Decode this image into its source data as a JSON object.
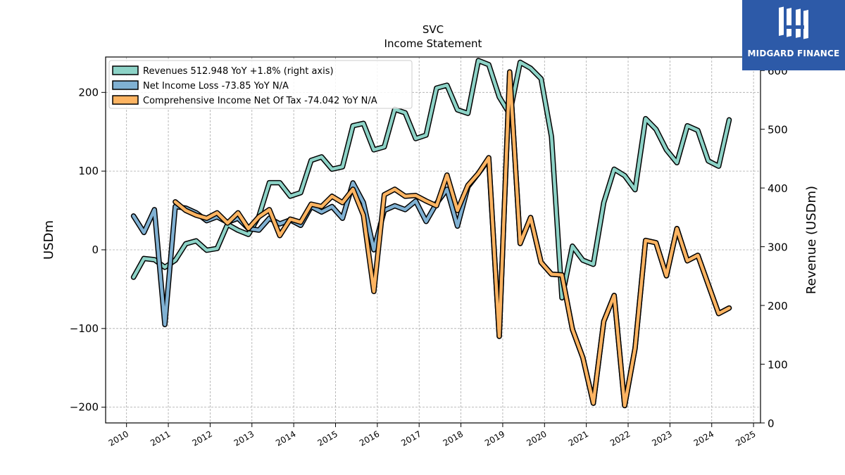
{
  "logo": {
    "brand": "MIDGARD FINANCE",
    "color": "#2d5aa8"
  },
  "chart_data": {
    "type": "line",
    "title": "SVC",
    "subtitle": "Income Statement",
    "ylabel_left": "USDm",
    "ylabel_right": "Revenue (USDm)",
    "ylim_left": [
      -220,
      245
    ],
    "ylim_right": [
      0,
      623
    ],
    "xlim": [
      "2009-07",
      "2025-03"
    ],
    "yticks_left": [
      -200,
      -100,
      0,
      100,
      200
    ],
    "yticks_left_labels": [
      "−200",
      "−100",
      "0",
      "100",
      "200"
    ],
    "yticks_right": [
      0,
      100,
      200,
      300,
      400,
      500,
      600
    ],
    "xticks": [
      "2010",
      "2011",
      "2012",
      "2013",
      "2014",
      "2015",
      "2016",
      "2017",
      "2018",
      "2019",
      "2020",
      "2021",
      "2022",
      "2023",
      "2024",
      "2025"
    ],
    "grid": true,
    "legend_position": "top-left",
    "series": [
      {
        "name": "Revenues  512.948 YoY +1.8% (right axis)",
        "axis": "right",
        "color": "#8dd3c7",
        "x": [
          "2010-03",
          "2010-06",
          "2010-09",
          "2010-12",
          "2011-03",
          "2011-06",
          "2011-09",
          "2011-12",
          "2012-03",
          "2012-06",
          "2012-09",
          "2012-12",
          "2013-03",
          "2013-06",
          "2013-09",
          "2013-12",
          "2014-03",
          "2014-06",
          "2014-09",
          "2014-12",
          "2015-03",
          "2015-06",
          "2015-09",
          "2015-12",
          "2016-03",
          "2016-06",
          "2016-09",
          "2016-12",
          "2017-03",
          "2017-06",
          "2017-09",
          "2017-12",
          "2018-03",
          "2018-06",
          "2018-09",
          "2018-12",
          "2019-03",
          "2019-06",
          "2019-09",
          "2019-12",
          "2020-03",
          "2020-06",
          "2020-09",
          "2020-12",
          "2021-03",
          "2021-06",
          "2021-09",
          "2021-12",
          "2022-03",
          "2022-06",
          "2022-09",
          "2022-12",
          "2023-03",
          "2023-06",
          "2023-09",
          "2023-12",
          "2024-03",
          "2024-06"
        ],
        "values": [
          248,
          280,
          278,
          265,
          277,
          305,
          310,
          294,
          297,
          338,
          328,
          321,
          352,
          409,
          409,
          386,
          392,
          447,
          453,
          432,
          436,
          506,
          510,
          465,
          470,
          534,
          528,
          484,
          490,
          570,
          575,
          533,
          527,
          617,
          610,
          555,
          526,
          614,
          604,
          586,
          487,
          213,
          301,
          277,
          270,
          375,
          432,
          421,
          397,
          518,
          500,
          465,
          443,
          506,
          498,
          446,
          437,
          516
        ]
      },
      {
        "name": "Net Income Loss  -73.85 YoY N/A",
        "axis": "left",
        "color": "#80b1d3",
        "x": [
          "2010-03",
          "2010-06",
          "2010-09",
          "2010-12",
          "2011-03",
          "2011-06",
          "2011-09",
          "2011-12",
          "2012-03",
          "2012-06",
          "2012-09",
          "2012-12",
          "2013-03",
          "2013-06",
          "2013-09",
          "2013-12",
          "2014-03",
          "2014-06",
          "2014-09",
          "2014-12",
          "2015-03",
          "2015-06",
          "2015-09",
          "2015-12",
          "2016-03",
          "2016-06",
          "2016-09",
          "2016-12",
          "2017-03",
          "2017-06",
          "2017-09",
          "2017-12",
          "2018-03",
          "2018-06",
          "2018-09",
          "2018-12",
          "2019-03",
          "2019-06",
          "2019-09",
          "2019-12",
          "2020-03",
          "2020-06",
          "2020-09",
          "2020-12",
          "2021-03",
          "2021-06",
          "2021-09",
          "2021-12",
          "2022-03",
          "2022-06",
          "2022-09",
          "2022-12",
          "2023-03",
          "2023-06",
          "2023-09",
          "2023-12",
          "2024-03",
          "2024-06"
        ],
        "values": [
          43,
          22,
          51,
          -95,
          55,
          53,
          47,
          37,
          42,
          35,
          40,
          27,
          25,
          40,
          33,
          38,
          31,
          55,
          48,
          55,
          40,
          85,
          60,
          0,
          50,
          56,
          51,
          62,
          36,
          59,
          77,
          30,
          80,
          97,
          115,
          -110,
          226,
          8,
          41,
          -16,
          -31,
          -32,
          -101,
          -137,
          -195,
          -91,
          -58,
          -198,
          -125,
          12,
          9,
          -33,
          27,
          -14,
          -7,
          -44,
          -81,
          -74
        ]
      },
      {
        "name": "Comprehensive Income Net Of Tax  -74.042 YoY N/A",
        "axis": "left",
        "color": "#fdb462",
        "x": [
          "2011-03",
          "2011-06",
          "2011-09",
          "2011-12",
          "2012-03",
          "2012-06",
          "2012-09",
          "2012-12",
          "2013-03",
          "2013-06",
          "2013-09",
          "2013-12",
          "2014-03",
          "2014-06",
          "2014-09",
          "2014-12",
          "2015-03",
          "2015-06",
          "2015-09",
          "2015-12",
          "2016-03",
          "2016-06",
          "2016-09",
          "2016-12",
          "2017-03",
          "2017-06",
          "2017-09",
          "2017-12",
          "2018-03",
          "2018-06",
          "2018-09",
          "2018-12",
          "2019-03",
          "2019-06",
          "2019-09",
          "2019-12",
          "2020-03",
          "2020-06",
          "2020-09",
          "2020-12",
          "2021-03",
          "2021-06",
          "2021-09",
          "2021-12",
          "2022-03",
          "2022-06",
          "2022-09",
          "2022-12",
          "2023-03",
          "2023-06",
          "2023-09",
          "2023-12",
          "2024-03",
          "2024-06"
        ],
        "values": [
          61,
          50,
          44,
          40,
          47,
          34,
          47,
          27,
          42,
          51,
          18,
          39,
          35,
          58,
          55,
          68,
          60,
          77,
          44,
          -53,
          70,
          77,
          68,
          69,
          62,
          56,
          95,
          50,
          82,
          97,
          117,
          -110,
          226,
          8,
          41,
          -16,
          -31,
          -32,
          -101,
          -137,
          -195,
          -91,
          -58,
          -198,
          -125,
          12,
          9,
          -33,
          27,
          -14,
          -7,
          -44,
          -81,
          -74
        ]
      }
    ]
  }
}
